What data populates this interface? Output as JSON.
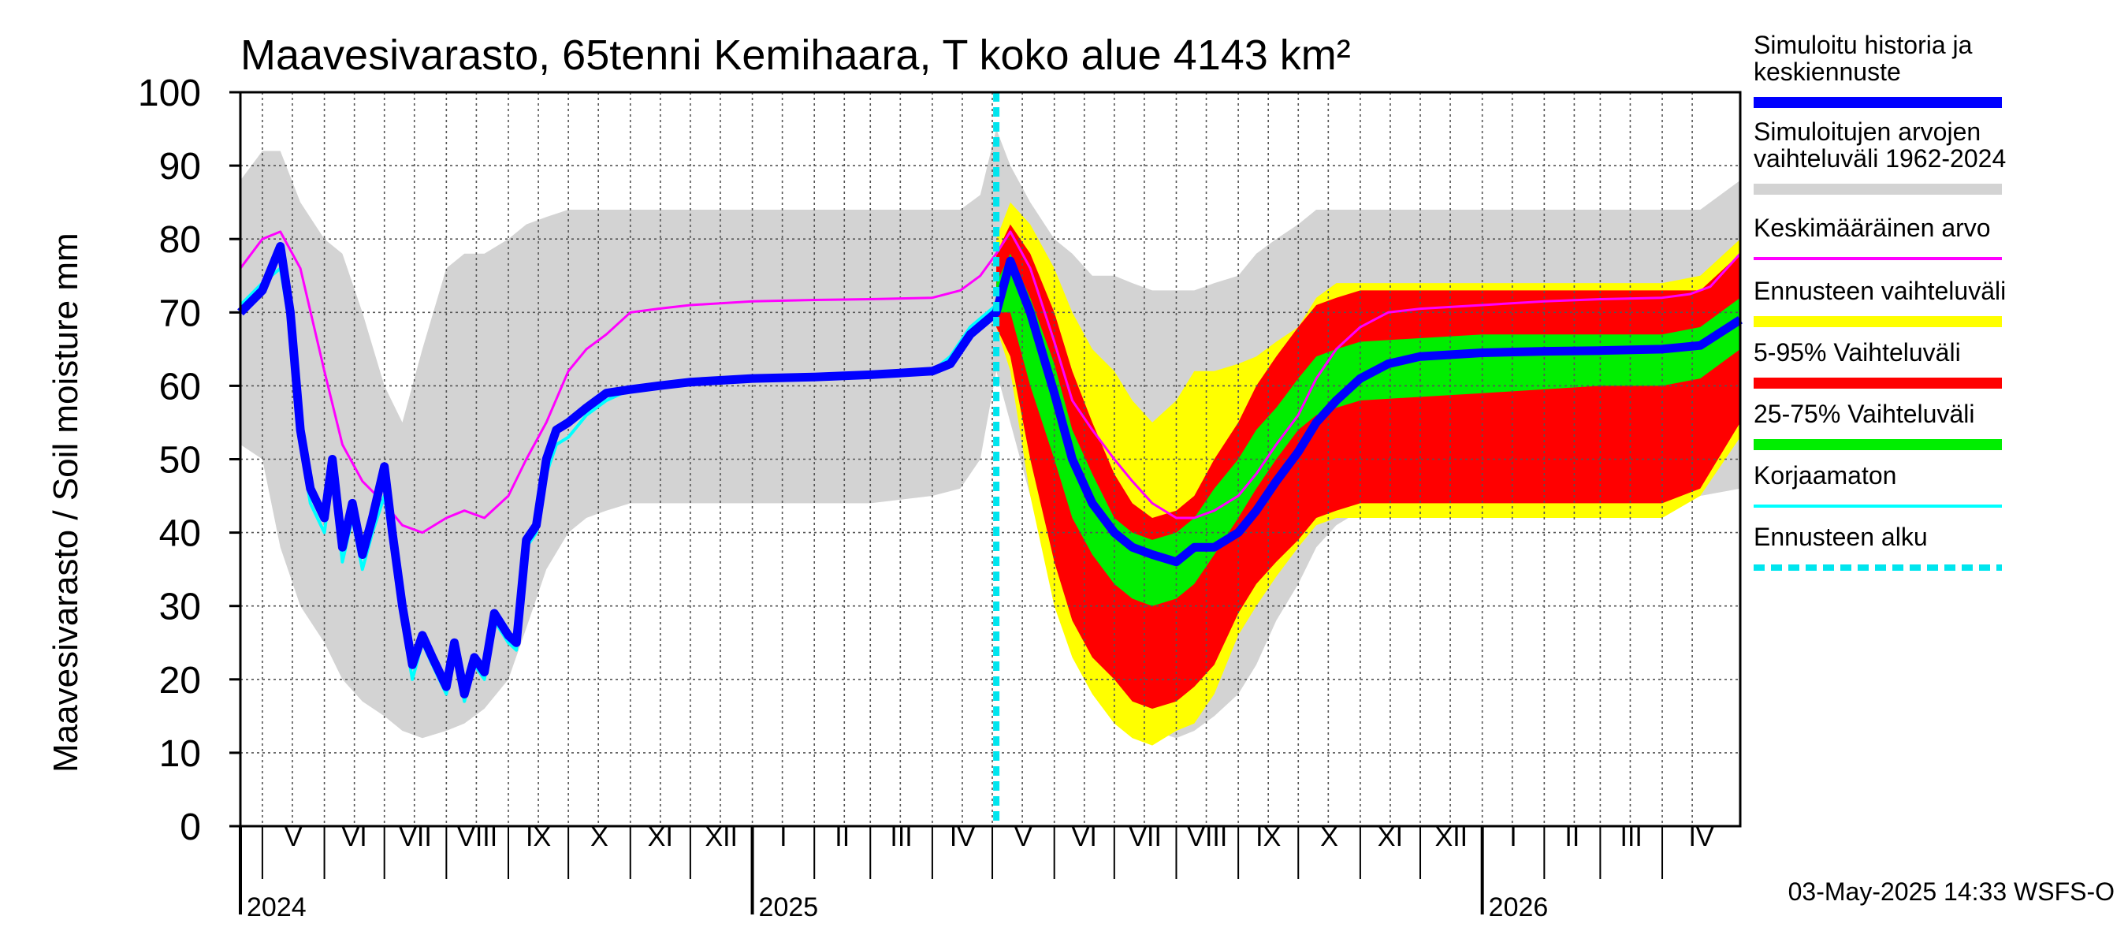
{
  "chart_data": {
    "type": "area",
    "title": "Maavesivarasto, 65tenni Kemihaara, T koko alue 4143 km²",
    "ylabel": "Maavesivarasto / Soil moisture   mm",
    "xlabel": "",
    "ylim": [
      0,
      100
    ],
    "yticks": [
      0,
      10,
      20,
      30,
      40,
      50,
      60,
      70,
      80,
      90,
      100
    ],
    "grid": true,
    "legend_position": "right",
    "x_start": "2024-04-20",
    "x_end": "2026-05-10",
    "forecast_start": "2025-05-03",
    "months": [
      {
        "label": "V",
        "start": "2024-05-01"
      },
      {
        "label": "VI",
        "start": "2024-06-01"
      },
      {
        "label": "VII",
        "start": "2024-07-01"
      },
      {
        "label": "VIII",
        "start": "2024-08-01"
      },
      {
        "label": "IX",
        "start": "2024-09-01"
      },
      {
        "label": "X",
        "start": "2024-10-01"
      },
      {
        "label": "XI",
        "start": "2024-11-01"
      },
      {
        "label": "XII",
        "start": "2024-12-01"
      },
      {
        "label": "I",
        "start": "2025-01-01"
      },
      {
        "label": "II",
        "start": "2025-02-01"
      },
      {
        "label": "III",
        "start": "2025-03-01"
      },
      {
        "label": "IV",
        "start": "2025-04-01"
      },
      {
        "label": "V",
        "start": "2025-05-01"
      },
      {
        "label": "VI",
        "start": "2025-06-01"
      },
      {
        "label": "VII",
        "start": "2025-07-01"
      },
      {
        "label": "VIII",
        "start": "2025-08-01"
      },
      {
        "label": "IX",
        "start": "2025-09-01"
      },
      {
        "label": "X",
        "start": "2025-10-01"
      },
      {
        "label": "XI",
        "start": "2025-11-01"
      },
      {
        "label": "XII",
        "start": "2025-12-01"
      },
      {
        "label": "I",
        "start": "2026-01-01"
      },
      {
        "label": "II",
        "start": "2026-02-01"
      },
      {
        "label": "III",
        "start": "2026-03-01"
      },
      {
        "label": "IV",
        "start": "2026-04-01"
      }
    ],
    "years": [
      {
        "label": "2024",
        "start": "2024-04-20"
      },
      {
        "label": "2025",
        "start": "2025-01-01"
      },
      {
        "label": "2026",
        "start": "2026-01-01"
      }
    ],
    "bands": [
      {
        "name": "Simuloitujen arvojen vaihteluväli 1962-2024",
        "color": "#d3d3d3",
        "x": [
          "2024-04-20",
          "2024-05-01",
          "2024-05-10",
          "2024-05-20",
          "2024-06-01",
          "2024-06-10",
          "2024-06-20",
          "2024-07-01",
          "2024-07-10",
          "2024-07-20",
          "2024-08-01",
          "2024-08-10",
          "2024-08-20",
          "2024-09-01",
          "2024-09-10",
          "2024-09-20",
          "2024-10-01",
          "2024-10-10",
          "2024-10-20",
          "2024-11-01",
          "2025-01-01",
          "2025-03-01",
          "2025-04-01",
          "2025-04-15",
          "2025-04-25",
          "2025-05-03",
          "2025-05-10",
          "2025-05-20",
          "2025-06-01",
          "2025-06-10",
          "2025-06-20",
          "2025-07-01",
          "2025-07-10",
          "2025-07-20",
          "2025-08-01",
          "2025-08-10",
          "2025-08-20",
          "2025-09-01",
          "2025-09-10",
          "2025-09-20",
          "2025-10-01",
          "2025-10-10",
          "2025-10-20",
          "2025-11-01",
          "2026-01-01",
          "2026-03-01",
          "2026-04-01",
          "2026-04-20",
          "2026-05-10"
        ],
        "low": [
          52,
          50,
          38,
          30,
          25,
          20,
          17,
          15,
          13,
          12,
          13,
          14,
          16,
          20,
          27,
          35,
          40,
          42,
          43,
          44,
          44,
          44,
          45,
          46,
          50,
          62,
          55,
          45,
          40,
          35,
          25,
          18,
          15,
          13,
          12,
          13,
          15,
          18,
          22,
          28,
          33,
          38,
          41,
          43,
          44,
          44,
          44,
          45,
          46
        ],
        "high": [
          88,
          92,
          92,
          85,
          80,
          78,
          70,
          60,
          55,
          65,
          76,
          78,
          78,
          80,
          82,
          83,
          84,
          84,
          84,
          84,
          84,
          84,
          84,
          84,
          86,
          95,
          90,
          85,
          80,
          78,
          75,
          75,
          74,
          73,
          73,
          73,
          74,
          75,
          78,
          80,
          82,
          84,
          84,
          84,
          84,
          84,
          84,
          84,
          88
        ]
      },
      {
        "name": "Ennusteen vaihteluväli",
        "color": "#ffff00",
        "x": [
          "2025-05-03",
          "2025-05-10",
          "2025-05-20",
          "2025-06-01",
          "2025-06-10",
          "2025-06-20",
          "2025-07-01",
          "2025-07-10",
          "2025-07-20",
          "2025-08-01",
          "2025-08-10",
          "2025-08-20",
          "2025-09-01",
          "2025-09-10",
          "2025-09-20",
          "2025-10-01",
          "2025-10-10",
          "2025-10-20",
          "2025-11-01",
          "2026-01-01",
          "2026-03-01",
          "2026-04-01",
          "2026-04-20",
          "2026-05-10"
        ],
        "low": [
          68,
          62,
          45,
          30,
          23,
          18,
          14,
          12,
          11,
          13,
          14,
          18,
          26,
          30,
          34,
          38,
          41,
          42,
          42,
          42,
          42,
          42,
          45,
          53
        ],
        "high": [
          80,
          85,
          82,
          76,
          70,
          65,
          62,
          58,
          55,
          58,
          62,
          62,
          63,
          64,
          66,
          68,
          72,
          74,
          74,
          74,
          74,
          74,
          75,
          80
        ]
      },
      {
        "name": "5-95% Vaihteluväli",
        "color": "#ff0000",
        "x": [
          "2025-05-03",
          "2025-05-10",
          "2025-05-20",
          "2025-06-01",
          "2025-06-10",
          "2025-06-20",
          "2025-07-01",
          "2025-07-10",
          "2025-07-20",
          "2025-08-01",
          "2025-08-10",
          "2025-08-20",
          "2025-09-01",
          "2025-09-10",
          "2025-09-20",
          "2025-10-01",
          "2025-10-10",
          "2025-10-20",
          "2025-11-01",
          "2026-01-01",
          "2026-03-01",
          "2026-04-01",
          "2026-04-20",
          "2026-05-10"
        ],
        "low": [
          68,
          64,
          50,
          36,
          28,
          23,
          20,
          17,
          16,
          17,
          19,
          22,
          29,
          33,
          36,
          39,
          42,
          43,
          44,
          44,
          44,
          44,
          46,
          55
        ],
        "high": [
          78,
          82,
          78,
          70,
          62,
          55,
          48,
          44,
          42,
          43,
          45,
          50,
          55,
          60,
          64,
          68,
          71,
          72,
          73,
          73,
          73,
          73,
          73,
          78
        ]
      },
      {
        "name": "25-75% Vaihteluväli",
        "color": "#00ee00",
        "x": [
          "2025-05-03",
          "2025-05-10",
          "2025-05-20",
          "2025-06-01",
          "2025-06-10",
          "2025-06-20",
          "2025-07-01",
          "2025-07-10",
          "2025-07-20",
          "2025-08-01",
          "2025-08-10",
          "2025-08-20",
          "2025-09-01",
          "2025-09-10",
          "2025-09-20",
          "2025-10-01",
          "2025-10-10",
          "2025-10-20",
          "2025-11-01",
          "2026-01-01",
          "2026-03-01",
          "2026-04-01",
          "2026-04-20",
          "2026-05-10"
        ],
        "low": [
          70,
          70,
          60,
          50,
          42,
          37,
          33,
          31,
          30,
          31,
          33,
          37,
          42,
          46,
          50,
          54,
          56,
          57,
          58,
          59,
          60,
          60,
          61,
          65
        ],
        "high": [
          74,
          78,
          72,
          63,
          54,
          48,
          42,
          40,
          39,
          40,
          42,
          46,
          50,
          54,
          57,
          61,
          64,
          65,
          66,
          67,
          67,
          67,
          68,
          72
        ]
      }
    ],
    "series": [
      {
        "name": "Keskimääräinen arvo",
        "color": "#ff00ff",
        "x": [
          "2024-04-20",
          "2024-05-01",
          "2024-05-10",
          "2024-05-20",
          "2024-06-01",
          "2024-06-10",
          "2024-06-20",
          "2024-07-01",
          "2024-07-10",
          "2024-07-20",
          "2024-08-01",
          "2024-08-10",
          "2024-08-20",
          "2024-09-01",
          "2024-09-10",
          "2024-09-20",
          "2024-10-01",
          "2024-10-10",
          "2024-10-20",
          "2024-11-01",
          "2024-11-15",
          "2024-12-01",
          "2025-01-01",
          "2025-02-01",
          "2025-03-01",
          "2025-04-01",
          "2025-04-15",
          "2025-04-25",
          "2025-05-03",
          "2025-05-10",
          "2025-05-20",
          "2025-06-01",
          "2025-06-10",
          "2025-06-20",
          "2025-07-01",
          "2025-07-10",
          "2025-07-20",
          "2025-08-01",
          "2025-08-10",
          "2025-08-20",
          "2025-09-01",
          "2025-09-10",
          "2025-09-20",
          "2025-10-01",
          "2025-10-10",
          "2025-10-20",
          "2025-11-01",
          "2025-11-15",
          "2025-12-01",
          "2026-01-01",
          "2026-02-01",
          "2026-03-01",
          "2026-04-01",
          "2026-04-15",
          "2026-04-25",
          "2026-05-10"
        ],
        "values": [
          76,
          80,
          81,
          76,
          62,
          52,
          47,
          44,
          41,
          40,
          42,
          43,
          42,
          45,
          50,
          55,
          62,
          65,
          67,
          70,
          70.5,
          71,
          71.5,
          71.7,
          71.8,
          72,
          73,
          75,
          78,
          81,
          76,
          66,
          58,
          54,
          50,
          47,
          44,
          42,
          42,
          43,
          45,
          48,
          52,
          56,
          61,
          65,
          68,
          70,
          70.5,
          71,
          71.5,
          71.8,
          72,
          72.5,
          73.5,
          78
        ]
      },
      {
        "name": "Korjaamaton",
        "color": "#00ffff",
        "x": [
          "2024-04-20",
          "2024-05-01",
          "2024-05-10",
          "2024-05-15",
          "2024-05-20",
          "2024-05-25",
          "2024-06-01",
          "2024-06-05",
          "2024-06-10",
          "2024-06-15",
          "2024-06-20",
          "2024-06-25",
          "2024-07-01",
          "2024-07-05",
          "2024-07-10",
          "2024-07-15",
          "2024-07-20",
          "2024-07-25",
          "2024-08-01",
          "2024-08-05",
          "2024-08-10",
          "2024-08-15",
          "2024-08-20",
          "2024-08-25",
          "2024-09-01",
          "2024-09-05",
          "2024-09-10",
          "2024-09-15",
          "2024-09-20",
          "2024-09-25",
          "2024-10-01",
          "2024-10-10",
          "2024-10-20",
          "2024-11-01",
          "2024-11-15",
          "2024-12-01",
          "2025-01-01",
          "2025-02-01",
          "2025-03-01",
          "2025-04-01",
          "2025-04-10",
          "2025-04-20",
          "2025-05-03"
        ],
        "values": [
          71,
          74,
          76,
          68,
          52,
          44,
          40,
          48,
          36,
          42,
          35,
          40,
          45,
          38,
          28,
          20,
          25,
          22,
          18,
          24,
          17,
          22,
          20,
          28,
          25,
          24,
          38,
          40,
          48,
          52,
          53,
          56,
          58,
          59.5,
          60,
          60.5,
          61,
          61.2,
          61.5,
          62,
          64,
          68,
          71
        ]
      },
      {
        "name": "Simuloitu historia ja keskiennuste",
        "color": "#0000ff",
        "x": [
          "2024-04-20",
          "2024-05-01",
          "2024-05-10",
          "2024-05-15",
          "2024-05-20",
          "2024-05-25",
          "2024-06-01",
          "2024-06-05",
          "2024-06-10",
          "2024-06-15",
          "2024-06-20",
          "2024-06-25",
          "2024-07-01",
          "2024-07-05",
          "2024-07-10",
          "2024-07-15",
          "2024-07-20",
          "2024-07-25",
          "2024-08-01",
          "2024-08-05",
          "2024-08-10",
          "2024-08-15",
          "2024-08-20",
          "2024-08-25",
          "2024-09-01",
          "2024-09-05",
          "2024-09-10",
          "2024-09-15",
          "2024-09-20",
          "2024-09-25",
          "2024-10-01",
          "2024-10-10",
          "2024-10-20",
          "2024-11-01",
          "2024-11-15",
          "2024-12-01",
          "2025-01-01",
          "2025-02-01",
          "2025-03-01",
          "2025-04-01",
          "2025-04-10",
          "2025-04-20",
          "2025-05-03",
          "2025-05-10",
          "2025-05-20",
          "2025-06-01",
          "2025-06-10",
          "2025-06-20",
          "2025-07-01",
          "2025-07-10",
          "2025-07-20",
          "2025-08-01",
          "2025-08-10",
          "2025-08-20",
          "2025-09-01",
          "2025-09-10",
          "2025-09-20",
          "2025-10-01",
          "2025-10-10",
          "2025-10-20",
          "2025-11-01",
          "2025-11-15",
          "2025-12-01",
          "2026-01-01",
          "2026-02-01",
          "2026-03-01",
          "2026-04-01",
          "2026-04-20",
          "2026-05-10"
        ],
        "values": [
          70,
          73,
          79,
          70,
          54,
          46,
          42,
          50,
          38,
          44,
          37,
          42,
          49,
          40,
          30,
          22,
          26,
          23,
          19,
          25,
          18,
          23,
          21,
          29,
          26,
          25,
          39,
          41,
          50,
          54,
          55,
          57,
          59,
          59.5,
          60,
          60.5,
          61,
          61.2,
          61.5,
          62,
          63,
          67,
          70,
          77,
          70,
          59,
          50,
          44,
          40,
          38,
          37,
          36,
          38,
          38,
          40,
          43,
          47,
          51,
          55,
          58,
          61,
          63,
          64,
          64.5,
          64.7,
          64.8,
          65,
          65.5,
          69
        ]
      }
    ]
  },
  "legend": [
    {
      "label": "Simuloitu historia ja keskiennuste",
      "color": "#0000ff",
      "style": "thick"
    },
    {
      "label": "Simuloitujen arvojen vaihteluväli 1962-2024",
      "color": "#d3d3d3",
      "style": "thick"
    },
    {
      "label": "Keskimääräinen arvo",
      "color": "#ff00ff",
      "style": "thin"
    },
    {
      "label": "Ennusteen vaihteluväli",
      "color": "#ffff00",
      "style": "thick"
    },
    {
      "label": "5-95% Vaihteluväli",
      "color": "#ff0000",
      "style": "thick"
    },
    {
      "label": "25-75% Vaihteluväli",
      "color": "#00ee00",
      "style": "thick"
    },
    {
      "label": "Korjaamaton",
      "color": "#00ffff",
      "style": "thin"
    },
    {
      "label": "Ennusteen alku",
      "color": "#00e5ee",
      "style": "dashed"
    }
  ],
  "legend_lines": [
    [
      "Simuloitu historia ja",
      "keskiennuste"
    ],
    [
      "Simuloitujen arvojen",
      "vaihteluväli 1962-2024"
    ],
    [
      "Keskimääräinen arvo"
    ],
    [
      "Ennusteen vaihteluväli"
    ],
    [
      "5-95% Vaihteluväli"
    ],
    [
      "25-75% Vaihteluväli"
    ],
    [
      "Korjaamaton"
    ],
    [
      "Ennusteen alku"
    ]
  ],
  "footer": "03-May-2025 14:33 WSFS-O"
}
